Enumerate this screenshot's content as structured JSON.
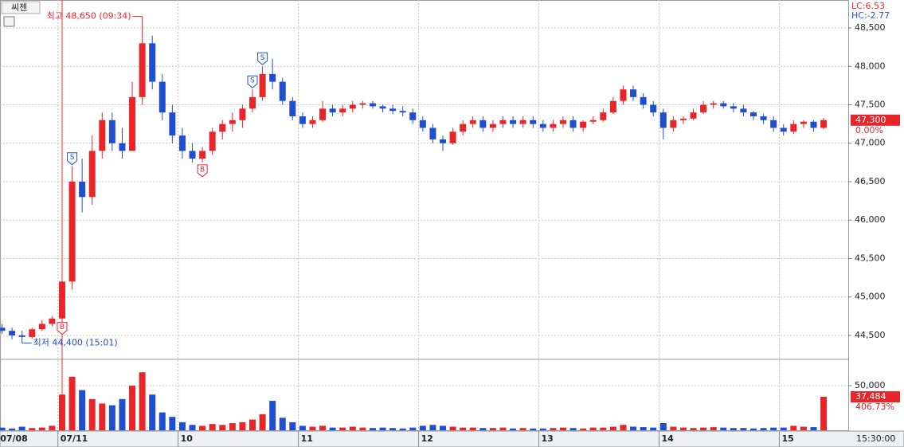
{
  "chart_data": {
    "type": "candlestick",
    "title": "씨젠",
    "lc_label": "LC:6.53",
    "hc_label": "HC:-2.77",
    "categories": [
      "07/08",
      null,
      null,
      null,
      null,
      null,
      "07/11",
      null,
      null,
      null,
      null,
      null,
      null,
      null,
      null,
      null,
      null,
      null,
      "10",
      null,
      null,
      null,
      null,
      null,
      null,
      null,
      null,
      null,
      null,
      null,
      "11",
      null,
      null,
      null,
      null,
      null,
      null,
      null,
      null,
      null,
      null,
      null,
      "12",
      null,
      null,
      null,
      null,
      null,
      null,
      null,
      null,
      null,
      null,
      null,
      "13",
      null,
      null,
      null,
      null,
      null,
      null,
      null,
      null,
      null,
      null,
      null,
      "14",
      null,
      null,
      null,
      null,
      null,
      null,
      null,
      null,
      null,
      null,
      null,
      "15",
      null,
      null,
      null,
      null
    ],
    "open": [
      44600,
      44560,
      44500,
      44480,
      44580,
      44650,
      44720,
      45200,
      46500,
      46300,
      46900,
      47300,
      47000,
      46900,
      47600,
      48300,
      47800,
      47400,
      47100,
      46900,
      46800,
      46900,
      47150,
      47250,
      47300,
      47450,
      47600,
      47900,
      47800,
      47550,
      47350,
      47250,
      47300,
      47450,
      47400,
      47450,
      47500,
      47520,
      47480,
      47450,
      47420,
      47400,
      47300,
      47200,
      47050,
      47000,
      47150,
      47250,
      47300,
      47200,
      47250,
      47300,
      47250,
      47300,
      47250,
      47200,
      47250,
      47300,
      47200,
      47280,
      47300,
      47400,
      47550,
      47700,
      47600,
      47500,
      47400,
      47200,
      47300,
      47320,
      47400,
      47500,
      47520,
      47480,
      47450,
      47400,
      47350,
      47300,
      47200,
      47150,
      47250,
      47280,
      47200
    ],
    "high": [
      44650,
      44600,
      44560,
      44600,
      44700,
      44750,
      45300,
      46700,
      46800,
      47100,
      47400,
      47400,
      47200,
      47800,
      48650,
      48400,
      47900,
      47500,
      47200,
      47000,
      46950,
      47200,
      47300,
      47400,
      47500,
      47700,
      48000,
      48100,
      47850,
      47600,
      47400,
      47350,
      47550,
      47500,
      47500,
      47550,
      47550,
      47550,
      47500,
      47500,
      47480,
      47450,
      47350,
      47250,
      47100,
      47200,
      47300,
      47350,
      47350,
      47300,
      47350,
      47350,
      47350,
      47350,
      47300,
      47300,
      47350,
      47350,
      47300,
      47350,
      47450,
      47600,
      47750,
      47750,
      47650,
      47550,
      47450,
      47350,
      47350,
      47450,
      47550,
      47550,
      47550,
      47520,
      47500,
      47420,
      47380,
      47350,
      47250,
      47300,
      47300,
      47300,
      47330
    ],
    "low": [
      44520,
      44450,
      44400,
      44460,
      44560,
      44620,
      44700,
      45100,
      46100,
      46200,
      46800,
      46900,
      46800,
      46900,
      47500,
      47700,
      47300,
      47000,
      46800,
      46750,
      46750,
      46850,
      47050,
      47150,
      47200,
      47400,
      47550,
      47700,
      47500,
      47300,
      47200,
      47200,
      47280,
      47350,
      47350,
      47400,
      47450,
      47450,
      47400,
      47380,
      47350,
      47250,
      47150,
      47000,
      46900,
      46980,
      47100,
      47200,
      47150,
      47150,
      47200,
      47200,
      47200,
      47200,
      47150,
      47150,
      47200,
      47150,
      47150,
      47250,
      47280,
      47380,
      47500,
      47550,
      47450,
      47350,
      47050,
      47150,
      47250,
      47300,
      47380,
      47450,
      47450,
      47400,
      47350,
      47300,
      47250,
      47150,
      47100,
      47120,
      47200,
      47150,
      47180
    ],
    "close": [
      44560,
      44500,
      44480,
      44580,
      44650,
      44720,
      45200,
      46500,
      46300,
      46900,
      47300,
      47000,
      46900,
      47600,
      48300,
      47800,
      47400,
      47100,
      46900,
      46800,
      46900,
      47150,
      47250,
      47300,
      47450,
      47600,
      47900,
      47800,
      47550,
      47350,
      47250,
      47300,
      47450,
      47400,
      47450,
      47500,
      47520,
      47480,
      47450,
      47420,
      47400,
      47300,
      47200,
      47050,
      47000,
      47150,
      47250,
      47300,
      47200,
      47250,
      47300,
      47250,
      47300,
      47250,
      47200,
      47250,
      47300,
      47200,
      47280,
      47300,
      47400,
      47550,
      47700,
      47600,
      47500,
      47400,
      47200,
      47300,
      47320,
      47400,
      47500,
      47520,
      47480,
      47450,
      47400,
      47350,
      47300,
      47200,
      47150,
      47250,
      47280,
      47200,
      47300
    ],
    "volume": [
      3000,
      2000,
      4000,
      2500,
      3000,
      5000,
      40000,
      60000,
      45000,
      35000,
      30000,
      28000,
      35000,
      50000,
      65000,
      40000,
      20000,
      15000,
      9000,
      6000,
      5000,
      7000,
      6000,
      8000,
      9000,
      12000,
      18000,
      33000,
      14000,
      9000,
      5000,
      4000,
      5000,
      3000,
      3000,
      4000,
      3000,
      2500,
      3000,
      2500,
      2000,
      3000,
      5000,
      6000,
      5000,
      4000,
      3000,
      3000,
      2500,
      2500,
      3000,
      2000,
      2500,
      2000,
      2000,
      2500,
      3000,
      2500,
      2000,
      3000,
      3000,
      4000,
      6000,
      4000,
      3500,
      3000,
      8000,
      4000,
      3000,
      2500,
      3000,
      3500,
      3000,
      2500,
      2500,
      2000,
      2500,
      3000,
      3000,
      5000,
      4000,
      3500,
      37484
    ],
    "up_color": "#e8262a",
    "down_color": "#1f4fd0",
    "ylim": [
      44199,
      48863
    ],
    "yticks": [
      {
        "value": 44500,
        "label": "44,500"
      },
      {
        "value": 45000,
        "label": "45,000"
      },
      {
        "value": 45500,
        "label": "45,500"
      },
      {
        "value": 46000,
        "label": "46,000"
      },
      {
        "value": 46500,
        "label": "46,500"
      },
      {
        "value": 47000,
        "label": "47,000"
      },
      {
        "value": 47500,
        "label": "47,500"
      },
      {
        "value": 48000,
        "label": "48,000"
      },
      {
        "value": 48500,
        "label": "48,500"
      }
    ],
    "volume_ylim": [
      0,
      78600
    ],
    "volume_yticks": [
      {
        "value": 50000,
        "label": "50,000"
      }
    ],
    "grid": true,
    "high_note": {
      "index": 14,
      "value": 48650,
      "label": "최고 48,650 (09:34)"
    },
    "low_note": {
      "index": 2,
      "value": 44400,
      "label": "최저 44,400 (15:01)"
    },
    "signals": [
      {
        "index": 6,
        "label": "B"
      },
      {
        "index": 7,
        "label": "S"
      },
      {
        "index": 20,
        "label": "B"
      },
      {
        "index": 25,
        "label": "S"
      },
      {
        "index": 26,
        "label": "S"
      }
    ],
    "price_tag": {
      "value": 47300,
      "label": "47,300",
      "change": "0.00%"
    },
    "volume_tag": {
      "value": 37484,
      "label": "37,484",
      "ratio": "406.73%"
    },
    "time_label": "15:30:00"
  }
}
